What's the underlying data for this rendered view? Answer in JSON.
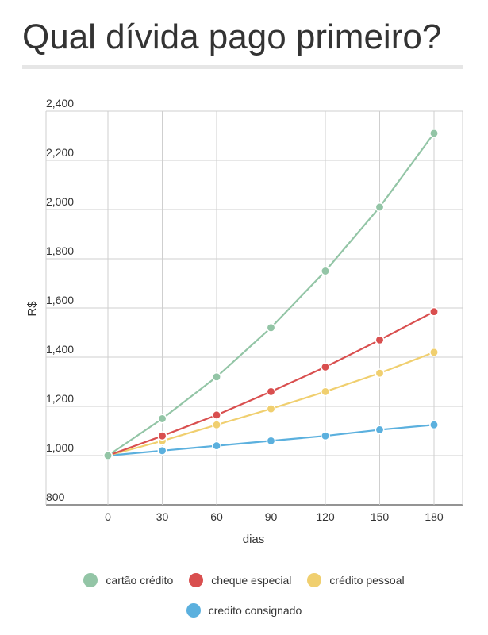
{
  "header": {
    "title": "Qual dívida pago primeiro?"
  },
  "chart_data": {
    "type": "line",
    "x": [
      0,
      30,
      60,
      90,
      120,
      150,
      180
    ],
    "x_tick_labels": [
      "0",
      "30",
      "60",
      "90",
      "120",
      "150",
      "180"
    ],
    "xlabel": "dias",
    "ylabel": "R$",
    "ylim": [
      800,
      2400
    ],
    "y_tick_labels": [
      "800",
      "1,000",
      "1,200",
      "1,400",
      "1,600",
      "1,800",
      "2,000",
      "2,200",
      "2,400"
    ],
    "y_ticks": [
      800,
      1000,
      1200,
      1400,
      1600,
      1800,
      2000,
      2200,
      2400
    ],
    "grid": true,
    "legend_position": "bottom",
    "series": [
      {
        "name": "cartão crédito",
        "color": "#93c5a6",
        "values": [
          1000,
          1150,
          1320,
          1520,
          1750,
          2010,
          2310
        ]
      },
      {
        "name": "cheque especial",
        "color": "#d94f4f",
        "values": [
          1000,
          1080,
          1165,
          1260,
          1360,
          1470,
          1585
        ]
      },
      {
        "name": "crédito pessoal",
        "color": "#f0cf6f",
        "values": [
          1000,
          1060,
          1125,
          1190,
          1260,
          1335,
          1420
        ]
      },
      {
        "name": "credito consignado",
        "color": "#5bb0de",
        "values": [
          1000,
          1020,
          1040,
          1060,
          1080,
          1105,
          1125
        ]
      }
    ]
  }
}
